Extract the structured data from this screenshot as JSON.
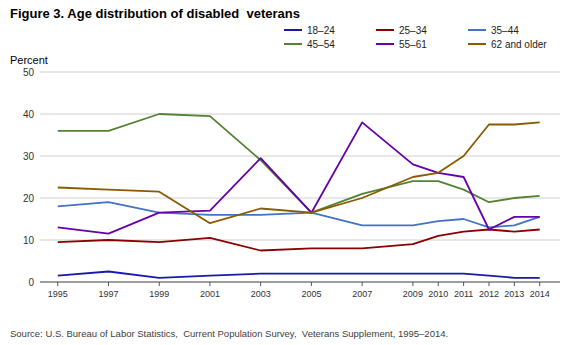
{
  "chart_data": {
    "type": "line",
    "title": "Figure 3. Age distribution of disabled  veterans",
    "ylabel": "Percent",
    "annotations": [
      "Source: U.S. Bureau of Labor Statistics,  Current Population Survey,  Veterans Supplement, 1995–2014."
    ],
    "x": [
      1995,
      1997,
      1999,
      2001,
      2003,
      2005,
      2007,
      2009,
      2010,
      2011,
      2012,
      2013,
      2014
    ],
    "xlim": [
      1994.3,
      2014.8
    ],
    "xticks": [
      1995,
      1997,
      1999,
      2001,
      2003,
      2005,
      2007,
      2009,
      2010,
      2011,
      2012,
      2013,
      2014
    ],
    "ylim": [
      0,
      50
    ],
    "yticks": [
      0,
      10,
      20,
      30,
      40,
      50
    ],
    "grid": true,
    "legend": "upper right",
    "series": [
      {
        "name": "18–24",
        "color": "#1a1aaa",
        "values": [
          1.5,
          2.5,
          1.0,
          1.5,
          2.0,
          2.0,
          2.0,
          2.0,
          2.0,
          2.0,
          1.5,
          1.0,
          1.0
        ]
      },
      {
        "name": "25–34",
        "color": "#8b0000",
        "values": [
          9.5,
          10.0,
          9.5,
          10.5,
          7.5,
          8.0,
          8.0,
          9.0,
          11.0,
          12.0,
          12.5,
          12.0,
          12.5
        ]
      },
      {
        "name": "35–44",
        "color": "#4472c4",
        "values": [
          18.0,
          19.0,
          16.5,
          16.0,
          16.0,
          16.5,
          13.5,
          13.5,
          14.5,
          15.0,
          13.0,
          13.5,
          15.5
        ]
      },
      {
        "name": "45–54",
        "color": "#548235",
        "values": [
          36.0,
          36.0,
          40.0,
          39.5,
          29.0,
          16.5,
          21.0,
          24.0,
          24.0,
          22.0,
          19.0,
          20.0,
          20.5
        ]
      },
      {
        "name": "55–61",
        "color": "#6600aa",
        "values": [
          13.0,
          11.5,
          16.5,
          17.0,
          29.5,
          16.5,
          38.0,
          28.0,
          26.0,
          25.0,
          12.5,
          15.5,
          15.5
        ]
      },
      {
        "name": "62 and older",
        "color": "#8b5a00",
        "values": [
          22.5,
          22.0,
          21.5,
          14.0,
          17.5,
          16.5,
          20.0,
          25.0,
          26.0,
          30.0,
          37.5,
          37.5,
          38.0
        ]
      }
    ]
  }
}
